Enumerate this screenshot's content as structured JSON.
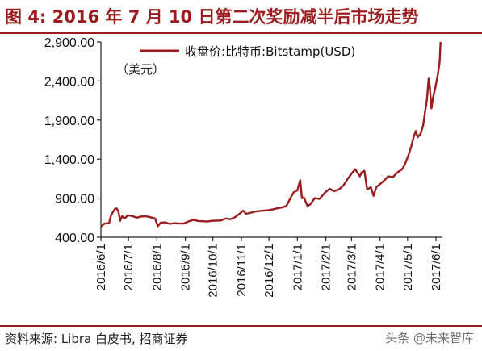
{
  "figure": {
    "title": "图 4:  2016 年 7 月 10 日第二次奖励减半后市场走势",
    "source": "资料来源: Libra 白皮书, 招商证券",
    "watermark": "头条 @未来智库"
  },
  "chart_data": {
    "type": "line",
    "unit_note": "（美元）",
    "ylim": [
      400,
      2900
    ],
    "yticks": [
      400,
      900,
      1400,
      1900,
      2400,
      2900
    ],
    "ytick_labels": [
      "400.00",
      "900.00",
      "1,400.00",
      "1,900.00",
      "2,400.00",
      "2,900.00"
    ],
    "xticks": [
      "2016/6/1",
      "2016/7/1",
      "2016/8/1",
      "2016/9/1",
      "2016/10/1",
      "2016/11/1",
      "2016/12/1",
      "2017/1/1",
      "2017/2/1",
      "2017/3/1",
      "2017/4/1",
      "2017/5/1",
      "2017/6/1"
    ],
    "xlim": [
      "2016-06-01",
      "2017-06-08"
    ],
    "legend_position": "top",
    "grid": false,
    "series": [
      {
        "name": "收盘价:比特币:Bitstamp(USD)",
        "color": "#9b1c1f",
        "points": [
          [
            "2016-06-01",
            535
          ],
          [
            "2016-06-05",
            575
          ],
          [
            "2016-06-10",
            580
          ],
          [
            "2016-06-12",
            680
          ],
          [
            "2016-06-16",
            760
          ],
          [
            "2016-06-18",
            770
          ],
          [
            "2016-06-20",
            735
          ],
          [
            "2016-06-22",
            610
          ],
          [
            "2016-06-24",
            670
          ],
          [
            "2016-06-27",
            640
          ],
          [
            "2016-06-30",
            680
          ],
          [
            "2016-07-05",
            672
          ],
          [
            "2016-07-10",
            650
          ],
          [
            "2016-07-15",
            665
          ],
          [
            "2016-07-20",
            668
          ],
          [
            "2016-07-25",
            655
          ],
          [
            "2016-07-30",
            640
          ],
          [
            "2016-08-02",
            540
          ],
          [
            "2016-08-05",
            585
          ],
          [
            "2016-08-10",
            590
          ],
          [
            "2016-08-15",
            570
          ],
          [
            "2016-08-20",
            580
          ],
          [
            "2016-08-25",
            575
          ],
          [
            "2016-08-30",
            575
          ],
          [
            "2016-09-05",
            605
          ],
          [
            "2016-09-10",
            622
          ],
          [
            "2016-09-15",
            608
          ],
          [
            "2016-09-20",
            605
          ],
          [
            "2016-09-25",
            600
          ],
          [
            "2016-09-30",
            610
          ],
          [
            "2016-10-05",
            612
          ],
          [
            "2016-10-10",
            615
          ],
          [
            "2016-10-15",
            640
          ],
          [
            "2016-10-20",
            630
          ],
          [
            "2016-10-25",
            655
          ],
          [
            "2016-10-30",
            700
          ],
          [
            "2016-11-03",
            740
          ],
          [
            "2016-11-06",
            700
          ],
          [
            "2016-11-10",
            710
          ],
          [
            "2016-11-15",
            725
          ],
          [
            "2016-11-20",
            735
          ],
          [
            "2016-11-25",
            740
          ],
          [
            "2016-11-30",
            745
          ],
          [
            "2016-12-05",
            755
          ],
          [
            "2016-12-10",
            770
          ],
          [
            "2016-12-15",
            780
          ],
          [
            "2016-12-20",
            800
          ],
          [
            "2016-12-24",
            890
          ],
          [
            "2016-12-28",
            975
          ],
          [
            "2017-01-01",
            1000
          ],
          [
            "2017-01-04",
            1130
          ],
          [
            "2017-01-06",
            900
          ],
          [
            "2017-01-08",
            910
          ],
          [
            "2017-01-12",
            800
          ],
          [
            "2017-01-15",
            820
          ],
          [
            "2017-01-20",
            900
          ],
          [
            "2017-01-25",
            890
          ],
          [
            "2017-01-31",
            970
          ],
          [
            "2017-02-05",
            1020
          ],
          [
            "2017-02-10",
            990
          ],
          [
            "2017-02-15",
            1010
          ],
          [
            "2017-02-20",
            1060
          ],
          [
            "2017-02-25",
            1150
          ],
          [
            "2017-03-02",
            1230
          ],
          [
            "2017-03-05",
            1270
          ],
          [
            "2017-03-10",
            1180
          ],
          [
            "2017-03-12",
            1230
          ],
          [
            "2017-03-15",
            1250
          ],
          [
            "2017-03-18",
            1010
          ],
          [
            "2017-03-22",
            1040
          ],
          [
            "2017-03-25",
            930
          ],
          [
            "2017-03-28",
            1040
          ],
          [
            "2017-04-01",
            1080
          ],
          [
            "2017-04-05",
            1120
          ],
          [
            "2017-04-10",
            1180
          ],
          [
            "2017-04-15",
            1170
          ],
          [
            "2017-04-20",
            1230
          ],
          [
            "2017-04-25",
            1270
          ],
          [
            "2017-04-28",
            1330
          ],
          [
            "2017-05-02",
            1450
          ],
          [
            "2017-05-05",
            1560
          ],
          [
            "2017-05-08",
            1700
          ],
          [
            "2017-05-10",
            1760
          ],
          [
            "2017-05-12",
            1680
          ],
          [
            "2017-05-15",
            1720
          ],
          [
            "2017-05-18",
            1830
          ],
          [
            "2017-05-20",
            2000
          ],
          [
            "2017-05-22",
            2150
          ],
          [
            "2017-05-24",
            2430
          ],
          [
            "2017-05-25",
            2350
          ],
          [
            "2017-05-27",
            2050
          ],
          [
            "2017-05-29",
            2200
          ],
          [
            "2017-05-31",
            2300
          ],
          [
            "2017-06-03",
            2480
          ],
          [
            "2017-06-05",
            2650
          ],
          [
            "2017-06-06",
            2900
          ]
        ]
      }
    ]
  }
}
